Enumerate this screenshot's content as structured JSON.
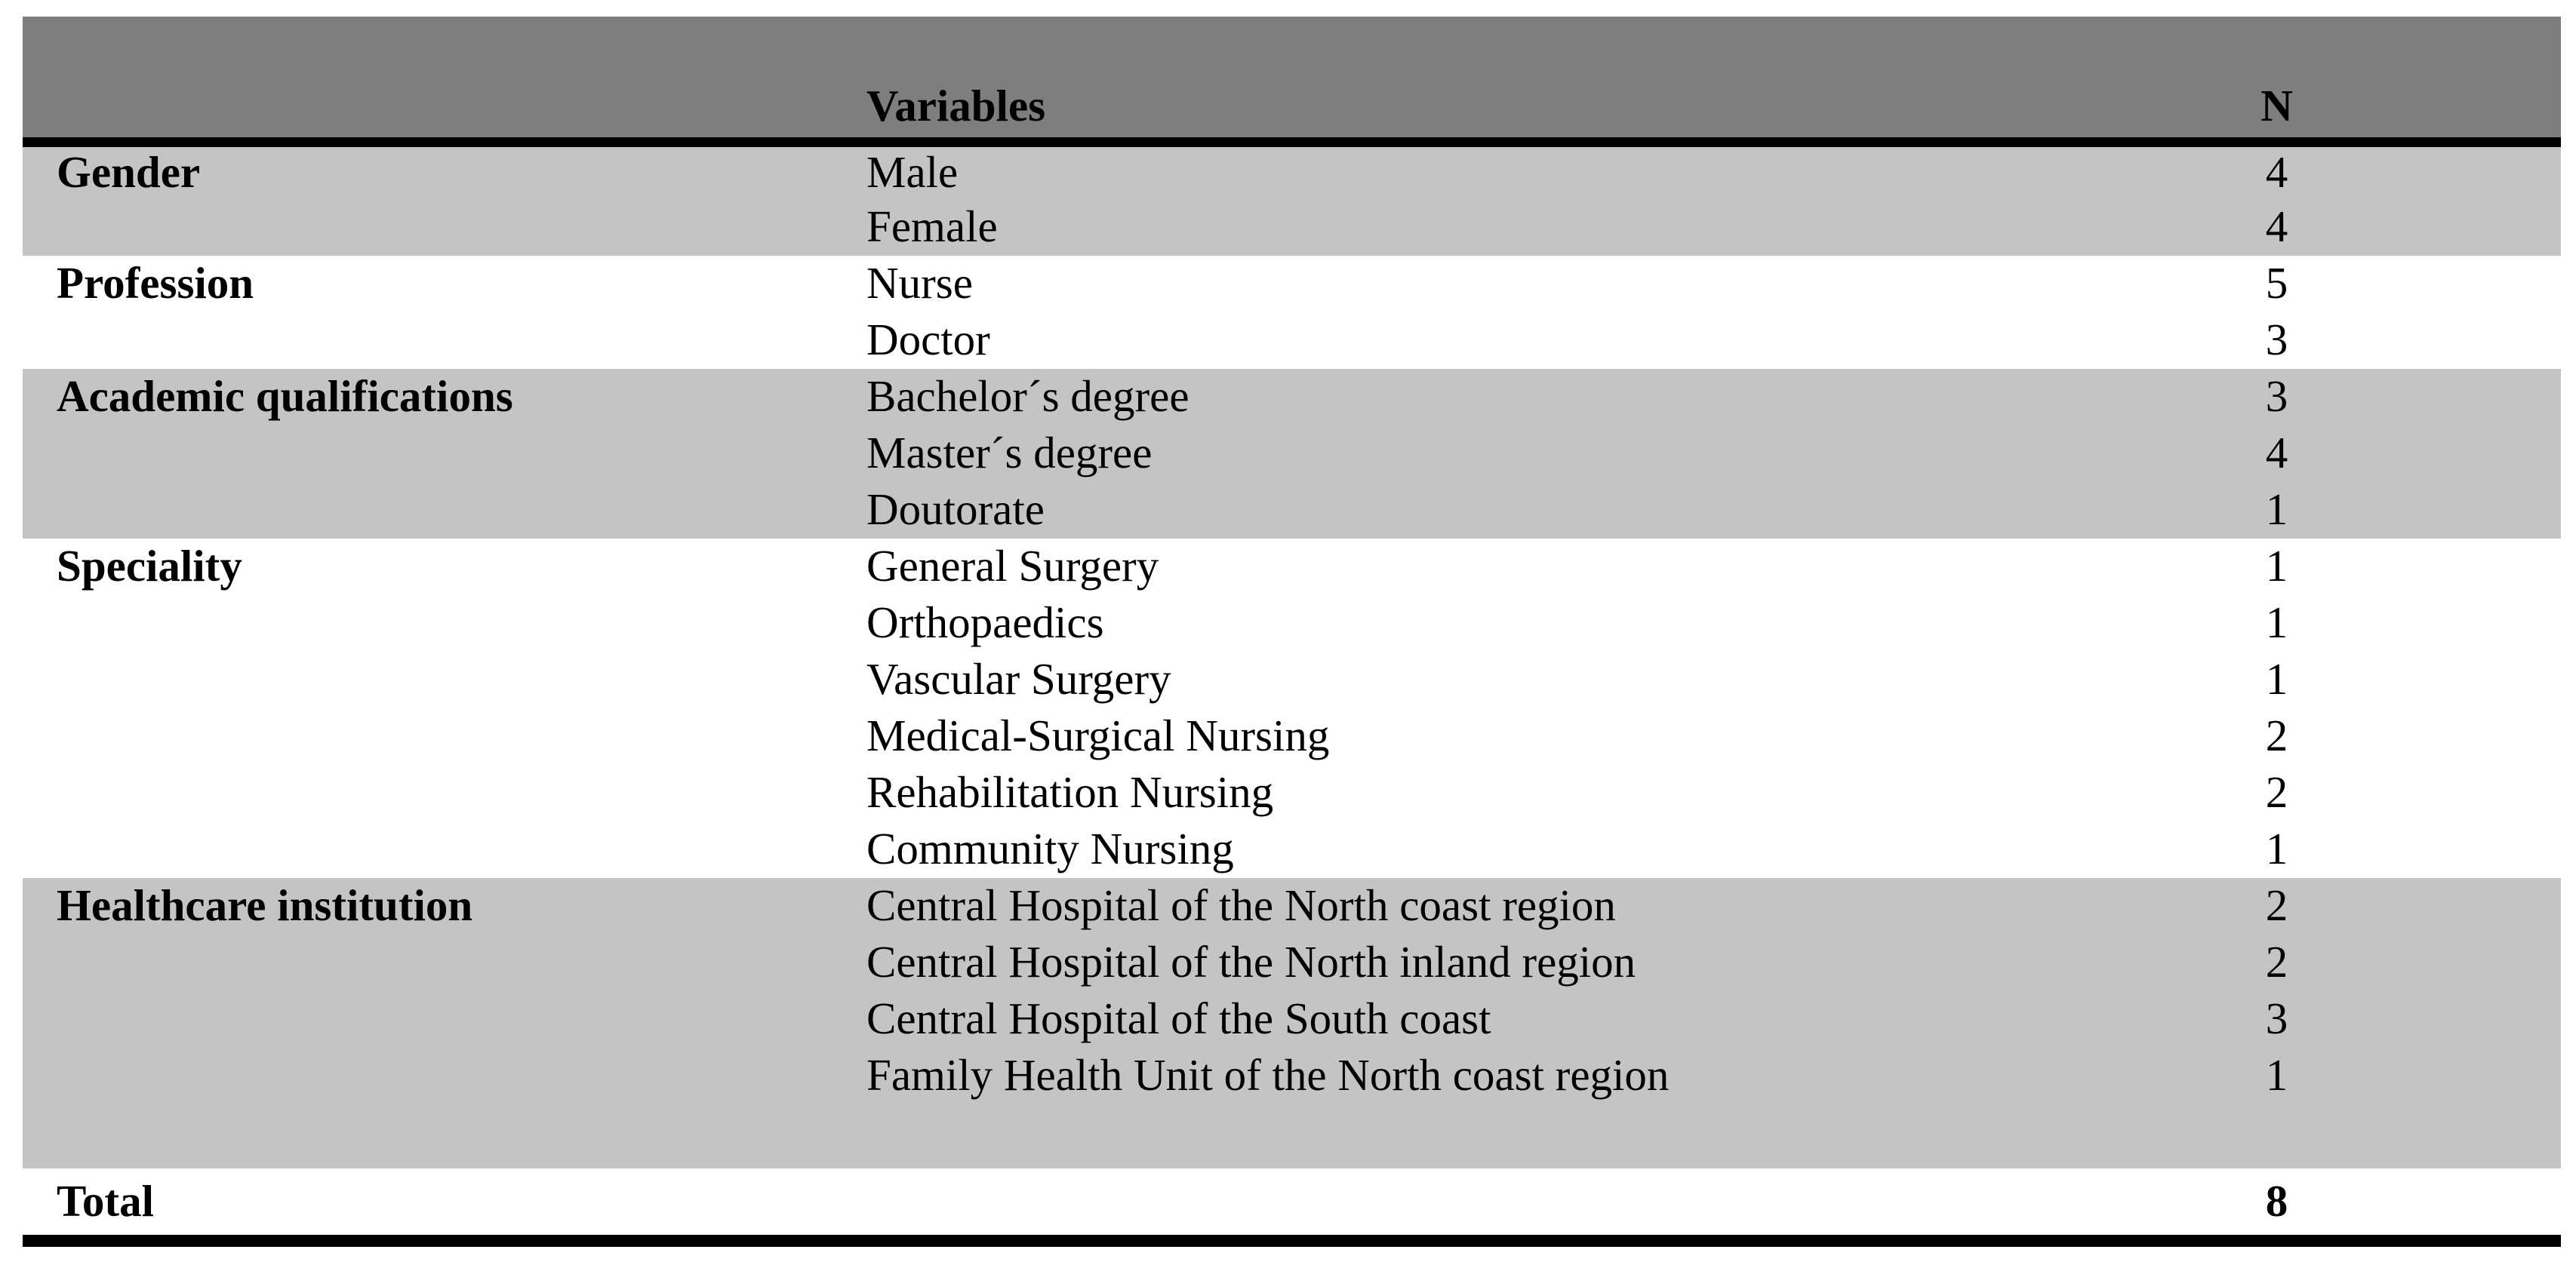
{
  "table": {
    "header": {
      "variables_label": "Variables",
      "n_label": "N"
    },
    "groups": [
      {
        "category": "Gender",
        "shaded": true,
        "spacer": false,
        "rows": [
          {
            "variable": "Male",
            "n": "4"
          },
          {
            "variable": "Female",
            "n": "4"
          }
        ]
      },
      {
        "category": "Profession",
        "shaded": false,
        "spacer": false,
        "rows": [
          {
            "variable": "Nurse",
            "n": "5"
          },
          {
            "variable": "Doctor",
            "n": "3"
          }
        ]
      },
      {
        "category": "Academic qualifications",
        "shaded": true,
        "spacer": false,
        "rows": [
          {
            "variable": "Bachelor´s degree",
            "n": "3"
          },
          {
            "variable": "Master´s degree",
            "n": "4"
          },
          {
            "variable": "Doutorate",
            "n": "1"
          }
        ]
      },
      {
        "category": "Speciality",
        "shaded": false,
        "spacer": false,
        "rows": [
          {
            "variable": "General Surgery",
            "n": "1"
          },
          {
            "variable": "Orthopaedics",
            "n": "1"
          },
          {
            "variable": "Vascular Surgery",
            "n": "1"
          },
          {
            "variable": "Medical-Surgical Nursing",
            "n": "2"
          },
          {
            "variable": "Rehabilitation Nursing",
            "n": "2"
          },
          {
            "variable": "Community Nursing",
            "n": "1"
          }
        ]
      },
      {
        "category": "Healthcare institution",
        "shaded": true,
        "spacer": true,
        "rows": [
          {
            "variable": "Central Hospital of the North coast region",
            "n": "2"
          },
          {
            "variable": "Central Hospital of the North inland region",
            "n": "2"
          },
          {
            "variable": "Central Hospital of the South coast",
            "n": "3"
          },
          {
            "variable": "Family Health Unit of the North coast region",
            "n": "1"
          }
        ]
      }
    ],
    "footer": {
      "label": "Total",
      "n": "8"
    }
  },
  "colors": {
    "header_bg": "#7e7e7e",
    "band_bg": "#c4c4c4",
    "rule": "#000000",
    "page_bg": "#ffffff",
    "text": "#000000"
  }
}
